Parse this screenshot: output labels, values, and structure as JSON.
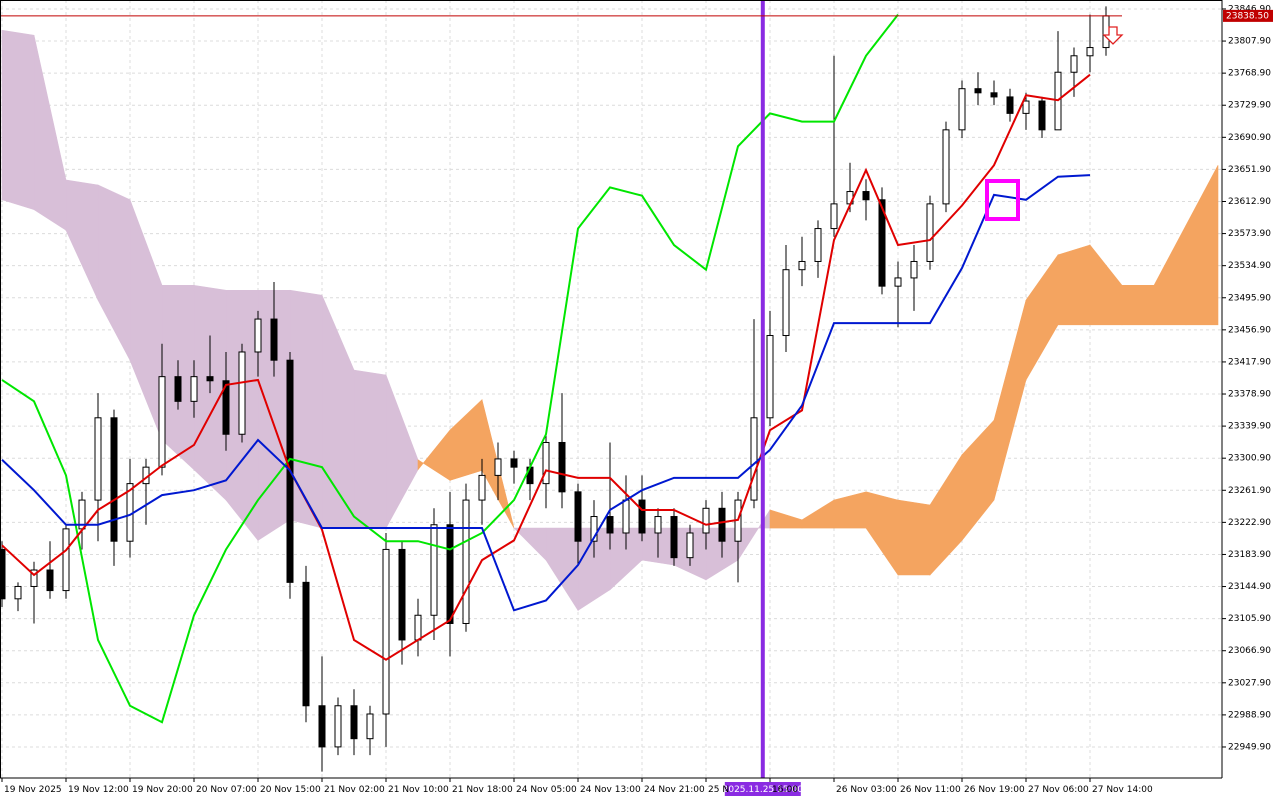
{
  "chart_data": {
    "type": "candlestick",
    "xlim": [
      -0.25,
      152.5
    ],
    "ylim": [
      22912.2,
      23857.8
    ],
    "grid": true,
    "bull_color": "#ffffff",
    "bear_color": "#000000",
    "yticks": [
      {
        "value": 23846.9,
        "label": "23846.90"
      },
      {
        "value": 23807.9,
        "label": "23807.90"
      },
      {
        "value": 23768.9,
        "label": "23768.90"
      },
      {
        "value": 23729.9,
        "label": "23729.90"
      },
      {
        "value": 23690.9,
        "label": "23690.90"
      },
      {
        "value": 23651.9,
        "label": "23651.90"
      },
      {
        "value": 23612.9,
        "label": "23612.90"
      },
      {
        "value": 23573.9,
        "label": "23573.90"
      },
      {
        "value": 23534.9,
        "label": "23534.90"
      },
      {
        "value": 23495.9,
        "label": "23495.90"
      },
      {
        "value": 23456.9,
        "label": "23456.90"
      },
      {
        "value": 23417.9,
        "label": "23417.90"
      },
      {
        "value": 23378.9,
        "label": "23378.90"
      },
      {
        "value": 23339.9,
        "label": "23339.90"
      },
      {
        "value": 23300.9,
        "label": "23300.90"
      },
      {
        "value": 23261.9,
        "label": "23261.90"
      },
      {
        "value": 23222.9,
        "label": "23222.90"
      },
      {
        "value": 23183.9,
        "label": "23183.90"
      },
      {
        "value": 23144.9,
        "label": "23144.90"
      },
      {
        "value": 23105.9,
        "label": "23105.90"
      },
      {
        "value": 23066.9,
        "label": "23066.90"
      },
      {
        "value": 23027.9,
        "label": "23027.90"
      },
      {
        "value": 22988.9,
        "label": "22988.90"
      },
      {
        "value": 22949.9,
        "label": "22949.90"
      }
    ],
    "xticks": [
      {
        "value": 0,
        "label": "19 Nov 2025"
      },
      {
        "value": 8,
        "label": "19 Nov 12:00"
      },
      {
        "value": 16,
        "label": "19 Nov 20:00"
      },
      {
        "value": 24,
        "label": "20 Nov 07:00"
      },
      {
        "value": 32,
        "label": "20 Nov 15:00"
      },
      {
        "value": 40,
        "label": "21 Nov 02:00"
      },
      {
        "value": 48,
        "label": "21 Nov 10:00"
      },
      {
        "value": 56,
        "label": "21 Nov 18:00"
      },
      {
        "value": 64,
        "label": "24 Nov 05:00"
      },
      {
        "value": 72,
        "label": "24 Nov 13:00"
      },
      {
        "value": 80,
        "label": "24 Nov 21:00"
      },
      {
        "value": 88,
        "label": "25 N"
      },
      {
        "value": 96,
        "label": "16:00"
      },
      {
        "value": 104,
        "label": "26 Nov 03:00"
      },
      {
        "value": 112,
        "label": "26 Nov 11:00"
      },
      {
        "value": 120,
        "label": "26 Nov 19:00"
      },
      {
        "value": 128,
        "label": "27 Nov 06:00"
      },
      {
        "value": 136,
        "label": "27 Nov 14:00"
      }
    ],
    "candles": {
      "x": [
        0,
        2,
        4,
        6,
        8,
        10,
        12,
        14,
        16,
        18,
        20,
        22,
        24,
        26,
        28,
        30,
        32,
        34,
        36,
        38,
        40,
        42,
        44,
        46,
        48,
        50,
        52,
        54,
        56,
        58,
        60,
        62,
        64,
        66,
        68,
        70,
        72,
        74,
        76,
        78,
        80,
        82,
        84,
        86,
        88,
        90,
        92,
        94,
        96,
        98,
        100,
        102,
        104,
        106,
        108,
        110,
        112,
        114,
        116,
        118,
        120,
        122,
        124,
        126,
        128,
        130,
        132,
        134,
        136,
        138
      ],
      "open": [
        23190,
        23130,
        23145,
        23165,
        23140,
        23215,
        23250,
        23350,
        23200,
        23270,
        23290,
        23400,
        23370,
        23400,
        23395,
        23330,
        23430,
        23470,
        23420,
        23150,
        23000,
        22950,
        23000,
        22960,
        22990,
        23190,
        23080,
        23110,
        23220,
        23100,
        23250,
        23280,
        23300,
        23290,
        23270,
        23320,
        23260,
        23200,
        23230,
        23210,
        23250,
        23210,
        23230,
        23180,
        23210,
        23240,
        23200,
        23250,
        23350,
        23450,
        23530,
        23540,
        23580,
        23610,
        23625,
        23615,
        23510,
        23520,
        23540,
        23610,
        23700,
        23750,
        23745,
        23740,
        23720,
        23735,
        23700,
        23770,
        23790,
        23800
      ],
      "high": [
        23200,
        23150,
        23175,
        23200,
        23220,
        23260,
        23380,
        23360,
        23300,
        23300,
        23440,
        23420,
        23420,
        23450,
        23430,
        23440,
        23480,
        23515,
        23430,
        23170,
        23060,
        23010,
        23020,
        23000,
        23210,
        23200,
        23130,
        23240,
        23260,
        23270,
        23300,
        23320,
        23310,
        23300,
        23330,
        23380,
        23270,
        23250,
        23320,
        23280,
        23280,
        23240,
        23240,
        23220,
        23250,
        23260,
        23260,
        23470,
        23480,
        23560,
        23570,
        23590,
        23790,
        23660,
        23640,
        23630,
        23540,
        23560,
        23620,
        23710,
        23760,
        23770,
        23760,
        23750,
        23745,
        23740,
        23820,
        23800,
        23840,
        23850
      ],
      "low": [
        23120,
        23115,
        23100,
        23130,
        23130,
        23190,
        23200,
        23170,
        23180,
        23220,
        23280,
        23360,
        23350,
        23380,
        23310,
        23320,
        23400,
        23400,
        23130,
        22980,
        22920,
        22940,
        22940,
        22940,
        22950,
        23050,
        23060,
        23080,
        23060,
        23090,
        23220,
        23250,
        23270,
        23250,
        23240,
        23240,
        23170,
        23180,
        23190,
        23190,
        23200,
        23180,
        23170,
        23170,
        23190,
        23180,
        23150,
        23240,
        23340,
        23430,
        23510,
        23520,
        23570,
        23600,
        23590,
        23500,
        23460,
        23480,
        23530,
        23600,
        23690,
        23730,
        23730,
        23710,
        23700,
        23690,
        23700,
        23740,
        23770,
        23790
      ],
      "close": [
        23130,
        23145,
        23165,
        23140,
        23215,
        23250,
        23350,
        23200,
        23270,
        23290,
        23400,
        23370,
        23400,
        23395,
        23330,
        23430,
        23470,
        23420,
        23150,
        23000,
        22950,
        23000,
        22960,
        22990,
        23190,
        23080,
        23110,
        23220,
        23100,
        23250,
        23280,
        23300,
        23290,
        23270,
        23320,
        23260,
        23200,
        23230,
        23210,
        23250,
        23210,
        23230,
        23180,
        23210,
        23240,
        23200,
        23250,
        23350,
        23450,
        23530,
        23540,
        23580,
        23610,
        23625,
        23615,
        23510,
        23520,
        23540,
        23610,
        23700,
        23750,
        23745,
        23740,
        23720,
        23735,
        23700,
        23770,
        23790,
        23800,
        23838.5
      ]
    },
    "lines_x": [
      0,
      4,
      8,
      12,
      16,
      20,
      24,
      28,
      32,
      36,
      40,
      44,
      48,
      52,
      56,
      60,
      64,
      68,
      72,
      76,
      80,
      84,
      88,
      92,
      96,
      100,
      104,
      108,
      112,
      116,
      120,
      124,
      128,
      132,
      136,
      140,
      144,
      148,
      152
    ],
    "lines": [
      {
        "color": "#00e600",
        "values": [
          23396,
          23370,
          23280,
          23080,
          23000,
          22980,
          23110,
          23190,
          23250,
          23300,
          23290,
          23230,
          23200,
          23200,
          23190,
          23210,
          23250,
          23330,
          23580,
          23630,
          23620,
          23560,
          23530,
          23680,
          23720,
          23710,
          23710,
          23790,
          23840,
          null,
          null,
          null,
          null,
          null,
          null,
          null,
          null,
          null,
          null
        ]
      },
      {
        "color": "#e00000",
        "values": [
          23195,
          23159,
          23189,
          23238,
          23262,
          23292,
          23317,
          23390,
          23396,
          23286,
          23214,
          23080,
          23056,
          23080,
          23104,
          23177,
          23201,
          23286,
          23277,
          23277,
          23238,
          23238,
          23220,
          23226,
          23335,
          23359,
          23566,
          23651,
          23560,
          23566,
          23608,
          23657,
          23742,
          23736,
          23767,
          null,
          null,
          null,
          null
        ]
      },
      {
        "color": "#0018d0",
        "values": [
          23299,
          23262,
          23220,
          23220,
          23232,
          23256,
          23262,
          23274,
          23323,
          23286,
          23216,
          23216,
          23216,
          23216,
          23216,
          23216,
          23116,
          23128,
          23171,
          23238,
          23262,
          23277,
          23277,
          23277,
          23311,
          23365,
          23465,
          23465,
          23465,
          23465,
          23532,
          23621,
          23615,
          23643,
          23645,
          null,
          null,
          null,
          null
        ]
      }
    ],
    "cloud": {
      "up_color": "#f4a460",
      "down_color": "#d8bfd8",
      "span_a": [
        23615,
        23603,
        23578,
        23493,
        23420,
        23323,
        23287,
        23250,
        23201,
        23226,
        23216,
        23216,
        23216,
        23287,
        23335,
        23372,
        23216,
        23177,
        23116,
        23141,
        23177,
        23171,
        23153,
        23177,
        23238,
        23226,
        23250,
        23260,
        23250,
        23244,
        23305,
        23347,
        23493,
        23548,
        23560,
        23511,
        23511,
        23584,
        23657
      ],
      "span_b": [
        23821,
        23815,
        23639,
        23633,
        23615,
        23511,
        23511,
        23505,
        23505,
        23505,
        23499,
        23408,
        23402,
        23299,
        23274,
        23286,
        23216,
        23216,
        23216,
        23216,
        23216,
        23216,
        23216,
        23216,
        23216,
        23216,
        23216,
        23216,
        23159,
        23159,
        23201,
        23250,
        23396,
        23463,
        23463,
        23463,
        23463,
        23463,
        23463
      ]
    },
    "current_price": {
      "value": 23838.5,
      "label": "23838.50",
      "color": "#c00000"
    },
    "marker": {
      "x": 95.1,
      "label": "2025.11.25 15:00",
      "color": "#8a2be2"
    }
  }
}
